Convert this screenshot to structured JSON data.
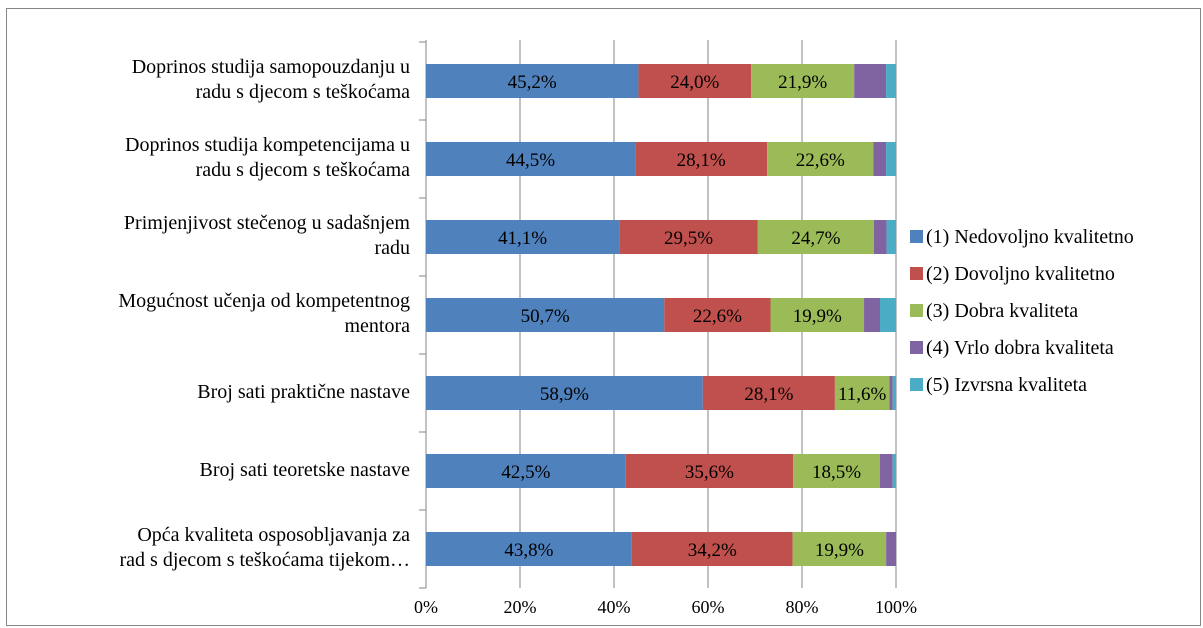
{
  "chart_data": {
    "type": "bar",
    "orientation": "horizontal",
    "stacked": "percent",
    "categories": [
      "Doprinos studija samopouzdanju u\nradu s djecom s teškoćama",
      "Doprinos studija kompetencijama u\nradu s djecom s teškoćama",
      "Primjenjivost stečenog u sadašnjem\nradu",
      "Mogućnost učenja od kompetentnog\nmentora",
      "Broj sati praktične nastave",
      "Broj sati teoretske nastave",
      "Opća kvaliteta osposobljavanja za\nrad s djecom s teškoćama tijekom…"
    ],
    "series": [
      {
        "name": "(1) Nedovoljno kvalitetno",
        "color": "#4F81BD",
        "values": [
          45.2,
          44.5,
          41.1,
          50.7,
          58.9,
          42.5,
          43.8
        ],
        "labels": [
          "45,2%",
          "44,5%",
          "41,1%",
          "50,7%",
          "58,9%",
          "42,5%",
          "43,8%"
        ]
      },
      {
        "name": "(2) Dovoljno kvalitetno",
        "color": "#C0504D",
        "values": [
          24.0,
          28.1,
          29.5,
          22.6,
          28.1,
          35.6,
          34.2
        ],
        "labels": [
          "24,0%",
          "28,1%",
          "29,5%",
          "22,6%",
          "28,1%",
          "35,6%",
          "34,2%"
        ]
      },
      {
        "name": "(3) Dobra kvaliteta",
        "color": "#9BBB59",
        "values": [
          21.9,
          22.6,
          24.7,
          19.9,
          11.6,
          18.5,
          19.9
        ],
        "labels": [
          "21,9%",
          "22,6%",
          "24,7%",
          "19,9%",
          "11,6%",
          "18,5%",
          "19,9%"
        ]
      },
      {
        "name": "(4) Vrlo dobra kvaliteta",
        "color": "#8064A2",
        "values": [
          6.8,
          2.7,
          2.7,
          3.4,
          0.7,
          2.7,
          2.1
        ],
        "labels": [
          "",
          "",
          "",
          "",
          "",
          "",
          ""
        ]
      },
      {
        "name": "(5) Izvrsna kvaliteta",
        "color": "#4BACC6",
        "values": [
          2.1,
          2.1,
          2.0,
          3.4,
          0.7,
          0.7,
          0.0
        ],
        "labels": [
          "",
          "",
          "",
          "",
          "",
          "",
          ""
        ]
      }
    ],
    "x_ticks": [
      "0%",
      "20%",
      "40%",
      "60%",
      "80%",
      "100%"
    ],
    "xlim": [
      0,
      100
    ],
    "grid": true,
    "legend_position": "right"
  }
}
